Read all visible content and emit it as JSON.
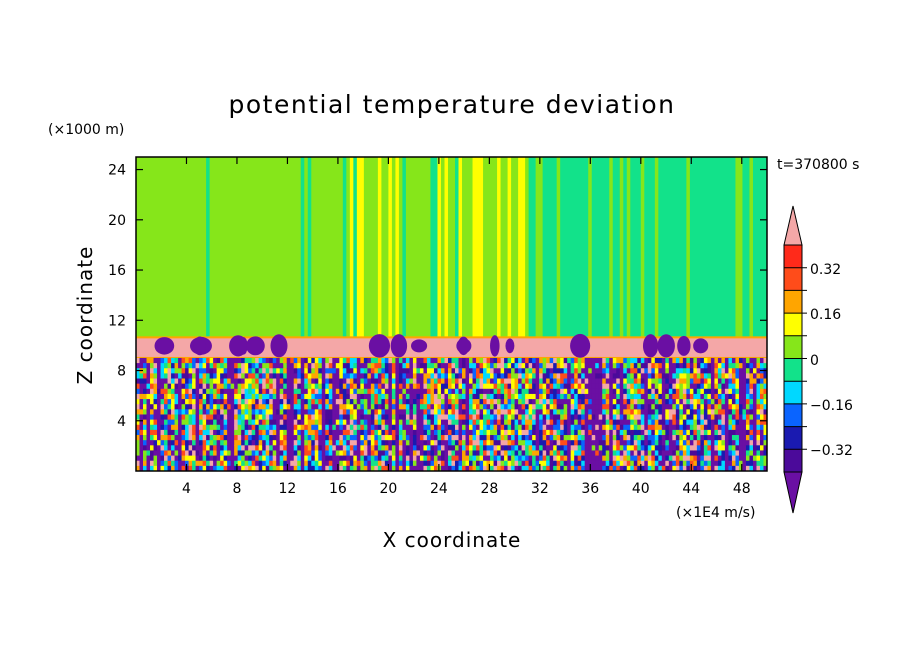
{
  "chart_data": {
    "type": "heatmap",
    "title": "potential temperature deviation",
    "xlabel": "X coordinate",
    "ylabel": "Z coordinate",
    "x_unit": "(×1E4 m/s)",
    "y_unit": "(×1000 m)",
    "time_label": "t=370800 s",
    "xlim": [
      0,
      50
    ],
    "ylim": [
      0,
      25
    ],
    "x_ticks": [
      4,
      8,
      12,
      16,
      20,
      24,
      28,
      32,
      36,
      40,
      44,
      48
    ],
    "y_ticks": [
      4,
      8,
      12,
      16,
      20,
      24
    ],
    "colorbar": {
      "levels": [
        -0.4,
        -0.32,
        -0.24,
        -0.16,
        -0.08,
        0,
        0.08,
        0.16,
        0.24,
        0.32,
        0.4
      ],
      "labeled": [
        0.32,
        0.16,
        0,
        -0.16,
        -0.32
      ],
      "colors": [
        "#6a0fa3",
        "#4b0a9a",
        "#1a1ab0",
        "#0a64ff",
        "#00d8ff",
        "#12e28a",
        "#86e61a",
        "#ffff00",
        "#ffa500",
        "#ff4c1a",
        "#ff2a1a",
        "#f4a7a7"
      ]
    },
    "regions": [
      {
        "name": "upper_layer",
        "z_range": [
          10.6,
          25
        ],
        "dominant_value": 0.04,
        "note": "green with cyan band x≈31–50 and yellow streaks x≈17–31"
      },
      {
        "name": "pink_band",
        "z_range": [
          9.0,
          10.6
        ],
        "dominant_value": 0.42
      },
      {
        "name": "lower_turbulent",
        "z_range": [
          0,
          9.0
        ],
        "dominant_value": -0.2,
        "note": "mixed positive/negative plumes"
      }
    ]
  },
  "texts": {
    "title": "potential temperature deviation",
    "xlabel": "X coordinate",
    "ylabel": "Z coordinate",
    "x_unit": "(×1E4 m/s)",
    "y_unit": "(×1000 m)",
    "time_label": "t=370800 s",
    "x_ticks": [
      "4",
      "8",
      "12",
      "16",
      "20",
      "24",
      "28",
      "32",
      "36",
      "40",
      "44",
      "48"
    ],
    "y_ticks": [
      "4",
      "8",
      "12",
      "16",
      "20",
      "24"
    ],
    "cb_labels": [
      "0.32",
      "0.16",
      "0",
      "−0.16",
      "−0.32"
    ]
  }
}
